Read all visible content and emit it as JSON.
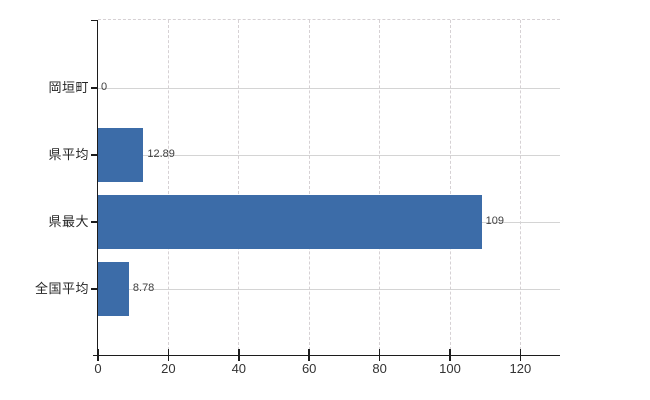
{
  "page": {
    "background": "#ffffff"
  },
  "chart": {
    "colors": {
      "bar": "#3c6ca8",
      "axis": "#1c1c1c",
      "grid_horizontal": "#d4d4d4",
      "grid_vertical": "#d6d1d4",
      "top_border": "#d6d1d4",
      "category_label": "#262626",
      "tick_label": "#333333",
      "value_label": "#3f3f3f"
    }
  },
  "chart_data": {
    "type": "bar",
    "orientation": "horizontal",
    "title": "",
    "xlabel": "",
    "ylabel": "",
    "categories": [
      "岡垣町",
      "県平均",
      "県最大",
      "全国平均"
    ],
    "values": [
      0,
      12.89,
      109,
      8.78
    ],
    "value_labels": [
      "0",
      "12.89",
      "109",
      "8.78"
    ],
    "xlim": [
      0,
      131.25
    ],
    "xticks": [
      "0",
      "20",
      "40",
      "60",
      "80",
      "100",
      "120"
    ],
    "xtick_values": [
      0,
      20,
      40,
      60,
      80,
      100,
      120
    ],
    "grid": {
      "horizontal": "solid",
      "vertical": "dashed",
      "top_border": "dashed"
    },
    "legend": false
  }
}
